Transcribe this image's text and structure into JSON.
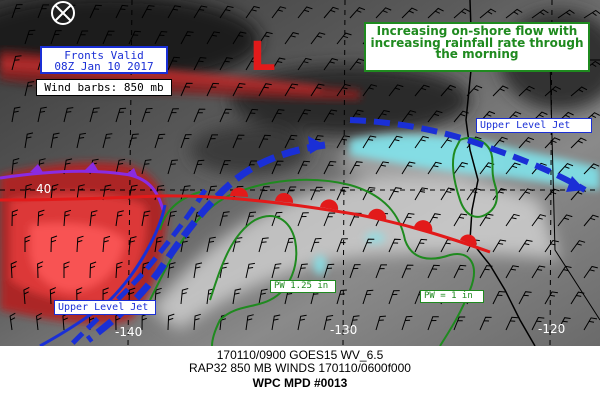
{
  "map": {
    "fronts_valid": [
      "Fronts Valid",
      "08Z Jan 10 2017"
    ],
    "wind_barbs_label": "Wind barbs: 850 mb",
    "headline": "Increasing on-shore flow with increasing rainfall rate through the morning",
    "jet_label_ne": "Upper Level Jet",
    "jet_label_sw": "Upper Level Jet",
    "pw_label_a": "PW 1.25 in",
    "pw_label_b": "PW = 1 in",
    "low_symbol": "L",
    "lat_tick": "40",
    "lon_ticks": [
      "-140",
      "-130",
      "-120"
    ],
    "colors": {
      "jet": "#1a2fd6",
      "cold_front": "#1a2fd6",
      "warm_front": "#e21a1a",
      "occluded_front": "#8a2be2",
      "pw_contour": "#1f8a1f",
      "low": "#e21a1a"
    }
  },
  "footer": {
    "line1": "170110/0900 GOES15 WV_6.5",
    "line2": "RAP32 850 MB WINDS 170110/0600f000",
    "line3": "WPC MPD #0013"
  }
}
